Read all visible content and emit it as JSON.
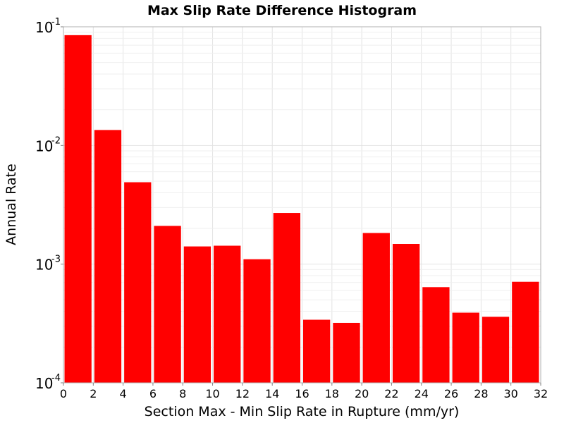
{
  "chart_data": {
    "type": "bar",
    "title": "Max Slip Rate Difference Histogram",
    "xlabel": "Section Max - Min Slip Rate in Rupture (mm/yr)",
    "ylabel": "Annual Rate",
    "x_bin_edges": [
      0,
      2,
      4,
      6,
      8,
      10,
      12,
      14,
      16,
      18,
      20,
      22,
      24,
      26,
      28,
      30,
      32
    ],
    "values": [
      0.085,
      0.0135,
      0.0049,
      0.0021,
      0.00141,
      0.00143,
      0.0011,
      0.0027,
      0.00034,
      0.00032,
      0.00183,
      0.00148,
      0.00064,
      0.00039,
      0.00036,
      0.00071
    ],
    "xlim": [
      0,
      32
    ],
    "ylim": [
      0.0001,
      0.1
    ],
    "yscale": "log",
    "xticks": [
      "0",
      "2",
      "4",
      "6",
      "8",
      "10",
      "12",
      "14",
      "16",
      "18",
      "20",
      "22",
      "24",
      "26",
      "28",
      "30",
      "32"
    ],
    "yticks": [
      {
        "base": "10",
        "exp": "-4",
        "value": 0.0001
      },
      {
        "base": "10",
        "exp": "-3",
        "value": 0.001
      },
      {
        "base": "10",
        "exp": "-2",
        "value": 0.01
      },
      {
        "base": "10",
        "exp": "-1",
        "value": 0.1
      }
    ],
    "bar_color": "#ff0000",
    "grid": true,
    "legend": "none"
  }
}
